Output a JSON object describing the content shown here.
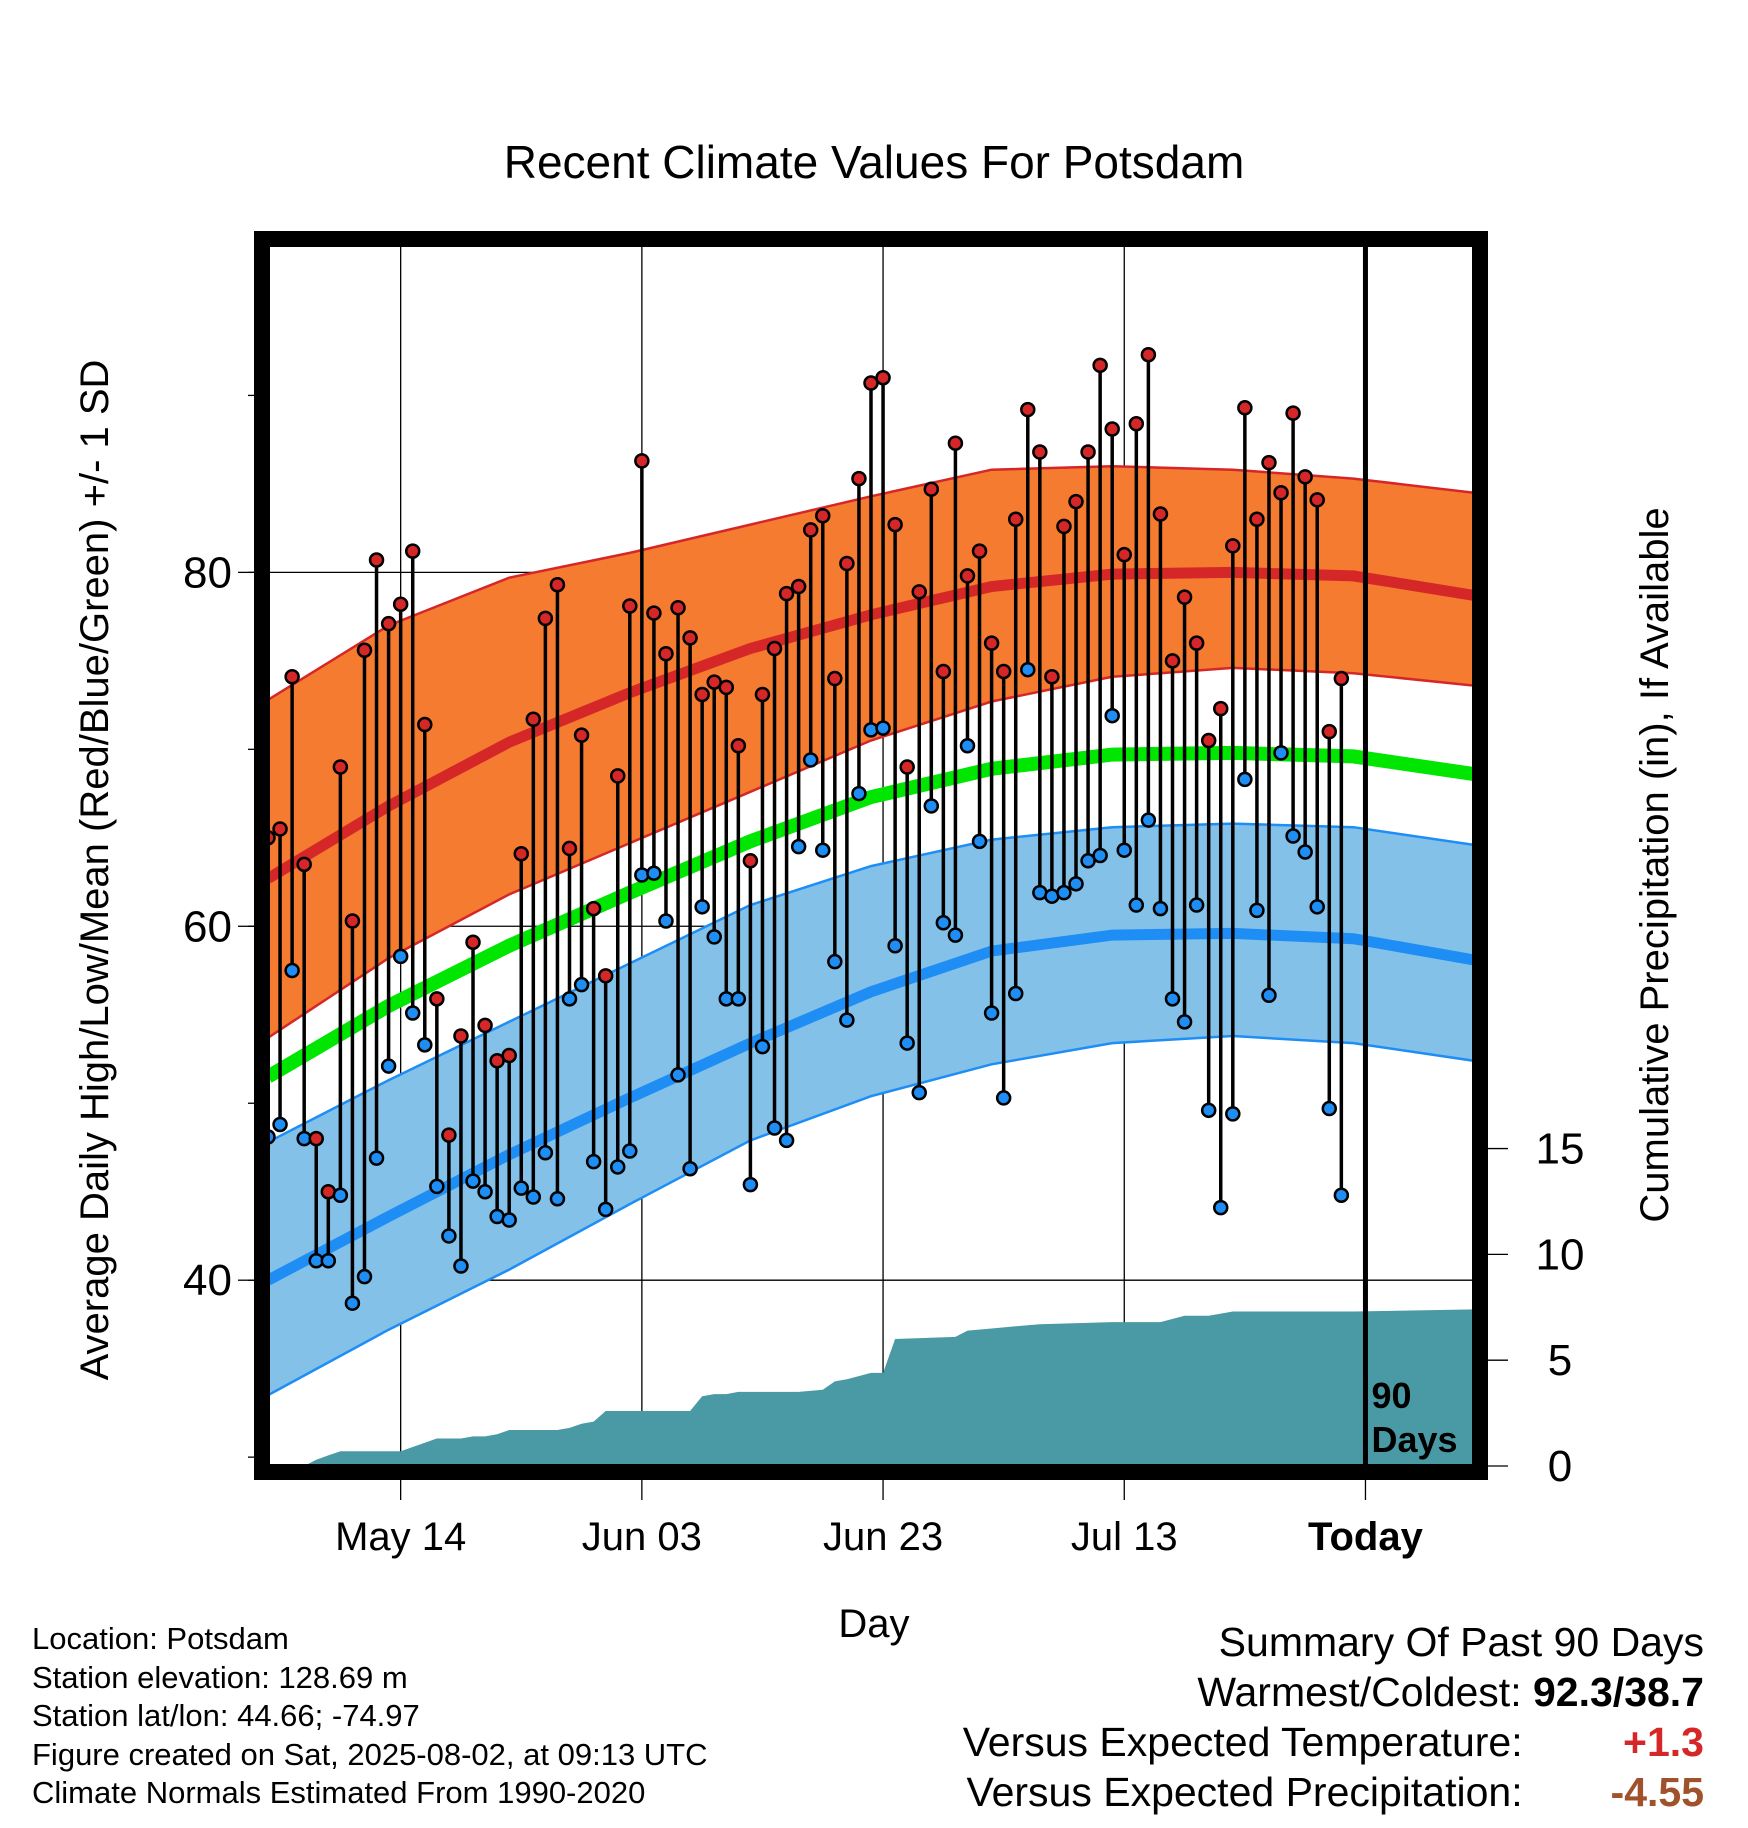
{
  "chart_data": {
    "type": "line",
    "title": "Recent Climate Values For Potsdam",
    "xlabel": "Day",
    "ylabel_left": "Average Daily High/Low/Mean (Red/Blue/Green) +/- 1 SD",
    "ylabel_right": "Cumulative Precipitation (in), If Available",
    "x_ticks": [
      "May 14",
      "Jun 03",
      "Jun 23",
      "Jul 13",
      "Today"
    ],
    "x_tick_days": [
      11,
      31,
      51,
      71,
      91
    ],
    "y_ticks_left": [
      "40",
      "60",
      "80"
    ],
    "y_ticks_right": [
      "0",
      "5",
      "10",
      "15"
    ],
    "ylim_left": [
      29.5,
      98.5
    ],
    "ylim_right_precip": [
      0,
      57.7
    ],
    "xlim_days": [
      0,
      100
    ],
    "today_marker": "90\nDays",
    "today_label_line1": "90",
    "today_label_line2": "Days",
    "normals": {
      "days": [
        0,
        10,
        20,
        30,
        40,
        50,
        60,
        70,
        80,
        90,
        100
      ],
      "high_mean": [
        62.7,
        66.8,
        70.4,
        73.2,
        75.7,
        77.6,
        79.2,
        79.9,
        80.0,
        79.8,
        78.7
      ],
      "high_sd_upper": [
        72.8,
        77.0,
        79.7,
        81.1,
        82.7,
        84.3,
        85.8,
        86.0,
        85.8,
        85.3,
        84.5
      ],
      "high_sd_lower": [
        53.7,
        58.2,
        61.8,
        64.7,
        67.6,
        70.5,
        72.7,
        74.1,
        74.6,
        74.3,
        73.6
      ],
      "mean": [
        51.5,
        55.5,
        58.9,
        61.9,
        64.8,
        67.3,
        68.9,
        69.7,
        69.8,
        69.6,
        68.6
      ],
      "low_mean": [
        40.0,
        43.6,
        47.1,
        50.3,
        53.4,
        56.3,
        58.6,
        59.5,
        59.6,
        59.3,
        58.1
      ],
      "low_sd_upper": [
        47.8,
        51.3,
        54.6,
        57.9,
        61.2,
        63.4,
        64.9,
        65.6,
        65.8,
        65.6,
        64.6
      ],
      "low_sd_lower": [
        33.5,
        37.2,
        40.6,
        44.3,
        47.9,
        50.4,
        52.2,
        53.4,
        53.8,
        53.4,
        52.4
      ]
    },
    "daily": {
      "days": [
        0,
        1,
        2,
        3,
        4,
        5,
        6,
        7,
        8,
        9,
        10,
        11,
        12,
        13,
        14,
        15,
        16,
        17,
        18,
        19,
        20,
        21,
        22,
        23,
        24,
        25,
        26,
        27,
        28,
        29,
        30,
        31,
        32,
        33,
        34,
        35,
        36,
        37,
        38,
        39,
        40,
        41,
        42,
        43,
        44,
        45,
        46,
        47,
        48,
        49,
        50,
        51,
        52,
        53,
        54,
        55,
        56,
        57,
        58,
        59,
        60,
        61,
        62,
        63,
        64,
        65,
        66,
        67,
        68,
        69,
        70,
        71,
        72,
        73,
        74,
        75,
        76,
        77,
        78,
        79,
        80,
        81,
        82,
        83,
        84,
        85,
        86,
        87,
        88,
        89,
        90
      ],
      "high": [
        65.0,
        65.5,
        74.1,
        63.5,
        48.0,
        45.0,
        69.0,
        60.3,
        75.6,
        80.7,
        77.1,
        78.2,
        81.2,
        71.4,
        55.9,
        48.2,
        53.8,
        59.1,
        54.4,
        52.4,
        52.7,
        64.1,
        71.7,
        77.4,
        79.3,
        64.4,
        70.8,
        61.0,
        57.2,
        68.5,
        78.1,
        86.3,
        77.7,
        75.4,
        78.0,
        76.3,
        73.1,
        73.8,
        73.5,
        70.2,
        63.7,
        73.1,
        75.7,
        78.8,
        79.2,
        82.4,
        83.2,
        74.0,
        80.5,
        85.3,
        90.7,
        91.0,
        82.7,
        69.0,
        78.9,
        84.7,
        74.4,
        87.3,
        79.8,
        81.2,
        76.0,
        74.4,
        83.0,
        89.2,
        86.8,
        74.1,
        82.6,
        84.0,
        86.8,
        91.7,
        88.1,
        81.0,
        88.4,
        92.3,
        83.3,
        75.0,
        78.6,
        76.0,
        70.5,
        72.3,
        81.5,
        89.3,
        83.0,
        86.2,
        84.5,
        89.0,
        85.4,
        84.1,
        71.0,
        74.0,
        null
      ],
      "low": [
        48.1,
        48.8,
        57.5,
        48.0,
        41.1,
        41.1,
        44.8,
        38.7,
        40.2,
        46.9,
        52.1,
        58.3,
        55.1,
        53.3,
        45.3,
        42.5,
        40.8,
        45.6,
        45.0,
        43.6,
        43.4,
        45.2,
        44.7,
        47.2,
        44.6,
        55.9,
        56.7,
        46.7,
        44.0,
        46.4,
        47.3,
        62.9,
        63.0,
        60.3,
        51.6,
        46.3,
        61.1,
        59.4,
        55.9,
        55.9,
        45.4,
        53.2,
        48.6,
        47.9,
        64.5,
        69.4,
        64.3,
        58.0,
        54.7,
        67.5,
        71.1,
        71.2,
        58.9,
        53.4,
        50.6,
        66.8,
        60.2,
        59.5,
        70.2,
        64.8,
        55.1,
        50.3,
        56.2,
        74.5,
        61.9,
        61.7,
        61.9,
        62.4,
        63.7,
        64.0,
        71.9,
        64.3,
        61.2,
        66.0,
        61.0,
        55.9,
        54.6,
        61.2,
        49.6,
        44.1,
        49.4,
        68.3,
        60.9,
        56.1,
        69.8,
        65.1,
        64.2,
        61.1,
        49.7,
        44.8,
        null
      ]
    },
    "precip": {
      "days": [
        0,
        3,
        4,
        5,
        6,
        8,
        10,
        11,
        12,
        13,
        14,
        15,
        16,
        17,
        18,
        19,
        20,
        21,
        22,
        24,
        25,
        26,
        27,
        28,
        30,
        31,
        35,
        36,
        37,
        38,
        39,
        40,
        41,
        42,
        44,
        46,
        47,
        48,
        50,
        51,
        52,
        57,
        58,
        60,
        62,
        64,
        70,
        71,
        72,
        73,
        74,
        76,
        78,
        80,
        82,
        84,
        86,
        90,
        100
      ],
      "cumulative": [
        0,
        0,
        0.3,
        0.5,
        0.7,
        0.7,
        0.7,
        0.7,
        0.9,
        1.1,
        1.3,
        1.3,
        1.3,
        1.4,
        1.4,
        1.5,
        1.7,
        1.7,
        1.7,
        1.7,
        1.8,
        2.0,
        2.1,
        2.6,
        2.6,
        2.6,
        2.6,
        3.3,
        3.4,
        3.4,
        3.5,
        3.5,
        3.5,
        3.5,
        3.5,
        3.6,
        4.0,
        4.1,
        4.4,
        4.4,
        6.0,
        6.1,
        6.4,
        6.5,
        6.6,
        6.7,
        6.8,
        6.8,
        6.8,
        6.8,
        6.8,
        7.1,
        7.1,
        7.3,
        7.3,
        7.3,
        7.3,
        7.3,
        7.4
      ]
    },
    "colors": {
      "high_band": "#f47b30",
      "high_line": "#d62728",
      "mean_line": "#00e600",
      "low_band": "#83c1e8",
      "low_line": "#1e8ef5",
      "precip_fill": "#4a9aa5",
      "high_dot": "#d62728",
      "low_dot": "#1e8ef5"
    },
    "grid": true,
    "legend": "none"
  },
  "footer": {
    "location": "Location: Potsdam",
    "elevation": "Station elevation: 128.69 m",
    "latlon": "Station lat/lon: 44.66; -74.97",
    "created": "Figure created on Sat, 2025-08-02, at 09:13 UTC",
    "normals": "Climate Normals Estimated From 1990-2020"
  },
  "summary": {
    "heading": "Summary Of Past 90 Days",
    "warm_label": "Warmest/Coldest:",
    "warm_value": "92.3/38.7",
    "temp_label": "Versus Expected Temperature:",
    "temp_value": "+1.3",
    "temp_color": "#d62728",
    "precip_label": "Versus Expected Precipitation:",
    "precip_value": "-4.55",
    "precip_color": "#a0522d"
  }
}
